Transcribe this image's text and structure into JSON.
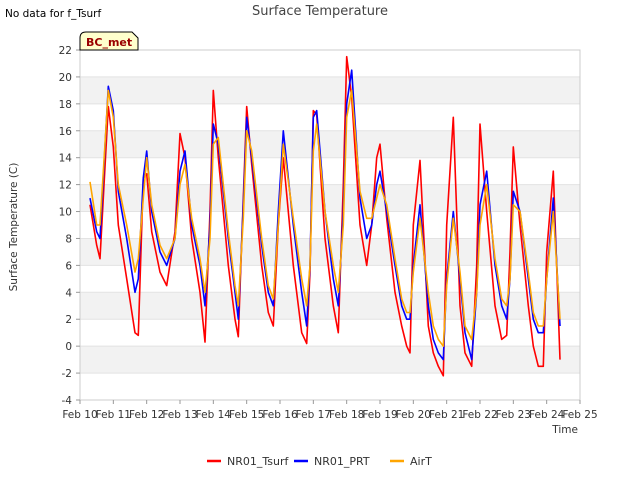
{
  "note": "No data for f_Tsurf",
  "badge": "BC_met",
  "chart_data": {
    "type": "line",
    "title": "Surface Temperature",
    "xlabel": "Time",
    "ylabel": "Surface Temperature (C)",
    "ylim": [
      -4,
      22
    ],
    "yticks": [
      -4,
      -2,
      0,
      2,
      4,
      6,
      8,
      10,
      12,
      14,
      16,
      18,
      20,
      22
    ],
    "xlim": [
      10,
      25
    ],
    "xticks": [
      10,
      11,
      12,
      13,
      14,
      15,
      16,
      17,
      18,
      19,
      20,
      21,
      22,
      23,
      24,
      25
    ],
    "xtick_labels": [
      "Feb 10",
      "Feb 11",
      "Feb 12",
      "Feb 13",
      "Feb 14",
      "Feb 15",
      "Feb 16",
      "Feb 17",
      "Feb 18",
      "Feb 19",
      "Feb 20",
      "Feb 21",
      "Feb 22",
      "Feb 23",
      "Feb 24",
      "Feb 25"
    ],
    "grid": "horizontal bands",
    "legend_position": "bottom",
    "series": [
      {
        "name": "NR01_Tsurf",
        "color": "#ff0000",
        "x": [
          10.3,
          10.5,
          10.6,
          10.85,
          11.0,
          11.15,
          11.4,
          11.65,
          11.75,
          11.9,
          12.0,
          12.15,
          12.4,
          12.6,
          12.85,
          13.0,
          13.15,
          13.35,
          13.6,
          13.75,
          13.9,
          14.0,
          14.15,
          14.45,
          14.65,
          14.75,
          14.9,
          15.0,
          15.15,
          15.45,
          15.65,
          15.8,
          15.95,
          16.1,
          16.4,
          16.65,
          16.8,
          16.9,
          17.0,
          17.1,
          17.35,
          17.6,
          17.75,
          17.9,
          18.0,
          18.15,
          18.4,
          18.6,
          18.75,
          18.9,
          19.0,
          19.2,
          19.45,
          19.65,
          19.8,
          19.9,
          20.0,
          20.2,
          20.45,
          20.6,
          20.75,
          20.9,
          21.0,
          21.2,
          21.4,
          21.55,
          21.75,
          21.9,
          22.0,
          22.2,
          22.45,
          22.65,
          22.8,
          22.9,
          23.0,
          23.2,
          23.45,
          23.6,
          23.75,
          23.9,
          24.0,
          24.2,
          24.4
        ],
        "y": [
          10.5,
          7.5,
          6.5,
          17.8,
          14.8,
          9.0,
          5.0,
          1.0,
          0.8,
          12.5,
          12.8,
          8.5,
          5.5,
          4.5,
          8.5,
          15.8,
          14.0,
          8.0,
          4.0,
          0.3,
          10.0,
          19.0,
          14.0,
          6.0,
          2.0,
          0.7,
          11.0,
          17.8,
          13.5,
          6.0,
          2.5,
          1.5,
          9.0,
          14.0,
          6.0,
          1.0,
          0.2,
          5.5,
          17.5,
          17.2,
          8.0,
          3.0,
          1.0,
          12.0,
          21.5,
          18.5,
          9.0,
          6.0,
          9.0,
          14.0,
          15.0,
          9.5,
          4.0,
          1.5,
          0.0,
          -0.5,
          9.0,
          13.8,
          1.5,
          -0.5,
          -1.5,
          -2.2,
          9.0,
          17.0,
          3.0,
          -0.5,
          -1.5,
          6.0,
          16.5,
          10.0,
          3.0,
          0.5,
          0.8,
          7.0,
          14.8,
          9.0,
          3.0,
          0.0,
          -1.5,
          -1.5,
          7.0,
          13.0,
          -1.0
        ]
      },
      {
        "name": "NR01_PRT",
        "color": "#0000ff",
        "x": [
          10.3,
          10.5,
          10.6,
          10.85,
          11.0,
          11.15,
          11.4,
          11.65,
          11.75,
          11.9,
          12.0,
          12.15,
          12.4,
          12.6,
          12.85,
          13.0,
          13.15,
          13.35,
          13.6,
          13.75,
          13.9,
          14.0,
          14.15,
          14.45,
          14.65,
          14.75,
          14.9,
          15.0,
          15.15,
          15.45,
          15.65,
          15.8,
          15.95,
          16.1,
          16.4,
          16.65,
          16.8,
          16.9,
          17.0,
          17.1,
          17.35,
          17.6,
          17.75,
          17.9,
          18.0,
          18.15,
          18.4,
          18.6,
          18.75,
          18.9,
          19.0,
          19.2,
          19.45,
          19.65,
          19.8,
          19.9,
          20.0,
          20.2,
          20.45,
          20.6,
          20.75,
          20.9,
          21.0,
          21.2,
          21.4,
          21.55,
          21.75,
          21.9,
          22.0,
          22.2,
          22.45,
          22.65,
          22.8,
          22.9,
          23.0,
          23.2,
          23.45,
          23.6,
          23.75,
          23.9,
          24.0,
          24.2,
          24.4
        ],
        "y": [
          11.0,
          8.5,
          8.0,
          19.3,
          17.5,
          11.5,
          8.0,
          4.0,
          5.0,
          12.5,
          14.5,
          10.0,
          7.0,
          6.0,
          8.0,
          13.0,
          14.5,
          9.0,
          6.0,
          3.0,
          9.0,
          16.5,
          15.0,
          8.0,
          4.0,
          2.0,
          10.5,
          17.0,
          14.0,
          7.5,
          4.0,
          3.0,
          10.0,
          16.0,
          9.0,
          4.0,
          1.5,
          6.0,
          17.0,
          17.5,
          10.0,
          5.0,
          3.0,
          10.0,
          18.0,
          20.5,
          11.0,
          8.0,
          9.0,
          12.0,
          13.0,
          10.0,
          6.0,
          3.0,
          2.0,
          2.0,
          6.0,
          10.5,
          3.0,
          0.5,
          -0.5,
          -1.0,
          5.0,
          10.0,
          5.0,
          1.0,
          -1.0,
          4.0,
          10.5,
          13.0,
          6.0,
          3.0,
          2.0,
          5.0,
          11.5,
          10.0,
          5.0,
          2.0,
          1.0,
          1.0,
          5.0,
          11.0,
          1.5
        ]
      },
      {
        "name": "AirT",
        "color": "#ffa500",
        "x": [
          10.3,
          10.5,
          10.6,
          10.85,
          11.0,
          11.15,
          11.4,
          11.65,
          11.75,
          11.9,
          12.0,
          12.15,
          12.4,
          12.6,
          12.85,
          13.0,
          13.15,
          13.35,
          13.6,
          13.75,
          13.9,
          14.0,
          14.15,
          14.45,
          14.65,
          14.75,
          14.9,
          15.0,
          15.15,
          15.45,
          15.65,
          15.8,
          15.95,
          16.1,
          16.4,
          16.65,
          16.8,
          16.9,
          17.0,
          17.1,
          17.35,
          17.6,
          17.75,
          17.9,
          18.0,
          18.15,
          18.4,
          18.6,
          18.75,
          18.9,
          19.0,
          19.2,
          19.45,
          19.65,
          19.8,
          19.9,
          20.0,
          20.2,
          20.45,
          20.6,
          20.75,
          20.9,
          21.0,
          21.2,
          21.4,
          21.55,
          21.75,
          21.9,
          22.0,
          22.2,
          22.45,
          22.65,
          22.8,
          22.9,
          23.0,
          23.2,
          23.45,
          23.6,
          23.75,
          23.9,
          24.0,
          24.2,
          24.4
        ],
        "y": [
          12.2,
          9.0,
          9.0,
          19.0,
          17.0,
          12.0,
          9.0,
          5.5,
          6.5,
          11.0,
          14.0,
          10.5,
          7.5,
          6.5,
          8.0,
          12.0,
          13.5,
          9.5,
          6.5,
          4.0,
          8.0,
          15.0,
          15.5,
          8.5,
          4.5,
          3.0,
          9.5,
          16.0,
          14.5,
          8.0,
          4.5,
          3.5,
          9.0,
          15.0,
          9.5,
          5.0,
          3.0,
          6.0,
          14.5,
          16.5,
          10.0,
          6.0,
          4.0,
          9.0,
          17.0,
          19.0,
          11.5,
          9.5,
          9.5,
          11.0,
          12.0,
          10.5,
          6.5,
          3.5,
          2.5,
          2.5,
          5.5,
          9.5,
          4.0,
          1.5,
          0.5,
          0.0,
          4.5,
          9.5,
          5.5,
          1.5,
          0.5,
          4.0,
          9.0,
          12.0,
          6.5,
          3.5,
          3.0,
          5.0,
          10.5,
          10.0,
          5.5,
          2.5,
          1.5,
          1.5,
          5.0,
          10.0,
          2.0
        ]
      }
    ]
  }
}
